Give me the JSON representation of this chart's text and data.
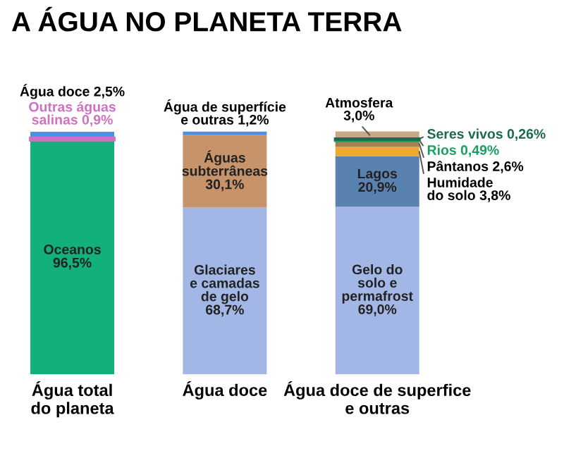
{
  "chart_data": {
    "type": "bar",
    "title": "A ÁGUA NO PLANETA TERRA",
    "stacked": true,
    "categories": [
      "Água total\ndo planeta",
      "Água doce",
      "Água doce de superfice\ne outras"
    ],
    "series": [
      {
        "name": "Oceanos",
        "color": "#12b07a",
        "values": [
          96.5,
          null,
          null
        ],
        "value_labels": [
          "96,5%",
          null,
          null
        ]
      },
      {
        "name": "Outras águas\nsalinas",
        "color": "#d070c0",
        "values": [
          0.9,
          null,
          null
        ],
        "value_labels": [
          "0,9%",
          null,
          null
        ]
      },
      {
        "name": "Água doce",
        "color": "#4a90e8",
        "values": [
          2.5,
          null,
          null
        ],
        "value_labels": [
          "2,5%",
          null,
          null
        ]
      },
      {
        "name": "Glaciares\ne camadas\nde gelo",
        "color": "#a3b7e6",
        "values": [
          null,
          68.7,
          null
        ],
        "value_labels": [
          null,
          "68,7%",
          null
        ]
      },
      {
        "name": "Águas\nsubterrâneas",
        "color": "#c6936a",
        "values": [
          null,
          30.1,
          null
        ],
        "value_labels": [
          null,
          "30,1%",
          null
        ]
      },
      {
        "name": "Água de superfície\ne outras",
        "color": "#4a90e8",
        "values": [
          null,
          1.2,
          null
        ],
        "value_labels": [
          null,
          "1,2%",
          null
        ]
      },
      {
        "name": "Gelo do\nsolo e\npermafrost",
        "color": "#a3b7e6",
        "values": [
          null,
          null,
          69.0
        ],
        "value_labels": [
          null,
          null,
          "69,0%"
        ]
      },
      {
        "name": "Lagos",
        "color": "#5a82b0",
        "values": [
          null,
          null,
          20.9
        ],
        "value_labels": [
          null,
          null,
          "20,9%"
        ]
      },
      {
        "name": "Humidade\ndo solo",
        "color": "#eea830",
        "values": [
          null,
          null,
          3.8
        ],
        "value_labels": [
          null,
          null,
          "3,8%"
        ]
      },
      {
        "name": "Pântanos",
        "color": "#a88050",
        "values": [
          null,
          null,
          2.6
        ],
        "value_labels": [
          null,
          null,
          "2,6%"
        ]
      },
      {
        "name": "Rios",
        "color": "#17a060",
        "values": [
          null,
          null,
          0.49
        ],
        "value_labels": [
          null,
          null,
          "0,49%"
        ]
      },
      {
        "name": "Seres vivos",
        "color": "#1a6a50",
        "values": [
          null,
          null,
          0.26
        ],
        "value_labels": [
          null,
          null,
          "0,26%"
        ]
      },
      {
        "name": "Atmosfera",
        "color": "#c8a888",
        "values": [
          null,
          null,
          3.0
        ],
        "value_labels": [
          null,
          null,
          "3,0%"
        ]
      }
    ]
  }
}
